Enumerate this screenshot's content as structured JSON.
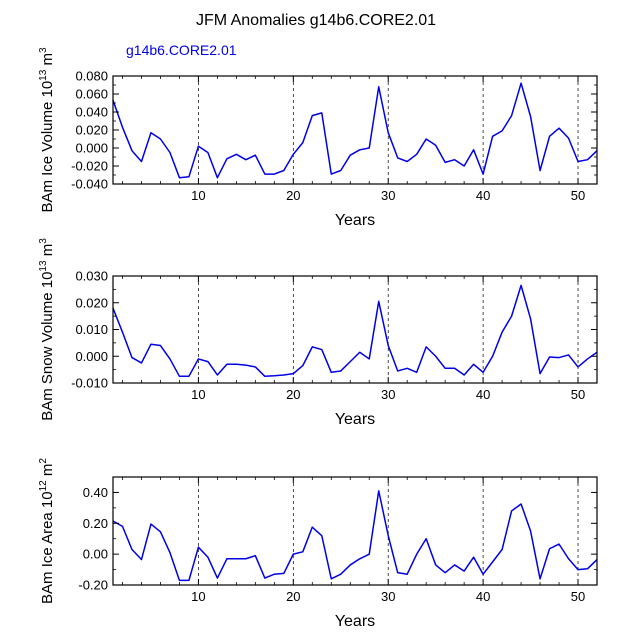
{
  "title": "JFM Anomalies g14b6.CORE2.01",
  "colors": {
    "line": "#0000e6",
    "axis": "#000000",
    "background": "#ffffff"
  },
  "chart_data": [
    {
      "type": "line",
      "legend_label": "g14b6.CORE2.01",
      "ylabel_main": "BAm Ice Volume 10",
      "ylabel_exp": "13",
      "ylabel_unit": " m",
      "ylabel_unit_exp": "3",
      "xlabel": "Years",
      "xlim": [
        1,
        52
      ],
      "ylim": [
        -0.04,
        0.08
      ],
      "xticks": [
        10,
        20,
        30,
        40,
        50
      ],
      "xtick_labels": [
        "10",
        "20",
        "30",
        "40",
        "50"
      ],
      "yticks": [
        -0.04,
        -0.02,
        0.0,
        0.02,
        0.04,
        0.06,
        0.08
      ],
      "ytick_labels": [
        "-0.040",
        "-0.020",
        "0.000",
        "0.020",
        "0.040",
        "0.060",
        "0.080"
      ],
      "x": [
        1,
        2,
        3,
        4,
        5,
        6,
        7,
        8,
        9,
        10,
        11,
        12,
        13,
        14,
        15,
        16,
        17,
        18,
        19,
        20,
        21,
        22,
        23,
        24,
        25,
        26,
        27,
        28,
        29,
        30,
        31,
        32,
        33,
        34,
        35,
        36,
        37,
        38,
        39,
        40,
        41,
        42,
        43,
        44,
        45,
        46,
        47,
        48,
        49,
        50,
        51,
        52
      ],
      "values": [
        0.053,
        0.023,
        -0.003,
        -0.015,
        0.017,
        0.01,
        -0.005,
        -0.033,
        -0.032,
        0.002,
        -0.005,
        -0.033,
        -0.012,
        -0.007,
        -0.013,
        -0.008,
        -0.029,
        -0.029,
        -0.025,
        -0.007,
        0.006,
        0.036,
        0.039,
        -0.029,
        -0.025,
        -0.008,
        -0.002,
        0.0,
        0.068,
        0.017,
        -0.011,
        -0.015,
        -0.007,
        0.01,
        0.003,
        -0.016,
        -0.013,
        -0.02,
        -0.002,
        -0.029,
        0.013,
        0.019,
        0.036,
        0.072,
        0.035,
        -0.025,
        0.013,
        0.022,
        0.011,
        -0.015,
        -0.013,
        -0.003
      ]
    },
    {
      "type": "line",
      "ylabel_main": "BAm Snow Volume 10",
      "ylabel_exp": "13",
      "ylabel_unit": " m",
      "ylabel_unit_exp": "3",
      "xlabel": "Years",
      "xlim": [
        1,
        52
      ],
      "ylim": [
        -0.01,
        0.03
      ],
      "xticks": [
        10,
        20,
        30,
        40,
        50
      ],
      "xtick_labels": [
        "10",
        "20",
        "30",
        "40",
        "50"
      ],
      "yticks": [
        -0.01,
        0.0,
        0.01,
        0.02,
        0.03
      ],
      "ytick_labels": [
        "-0.010",
        "0.000",
        "0.010",
        "0.020",
        "0.030"
      ],
      "x": [
        1,
        2,
        3,
        4,
        5,
        6,
        7,
        8,
        9,
        10,
        11,
        12,
        13,
        14,
        15,
        16,
        17,
        18,
        19,
        20,
        21,
        22,
        23,
        24,
        25,
        26,
        27,
        28,
        29,
        30,
        31,
        32,
        33,
        34,
        35,
        36,
        37,
        38,
        39,
        40,
        41,
        42,
        43,
        44,
        45,
        46,
        47,
        48,
        49,
        50,
        51,
        52
      ],
      "values": [
        0.018,
        0.009,
        -0.0005,
        -0.0025,
        0.0045,
        0.004,
        -0.001,
        -0.0075,
        -0.0075,
        -0.001,
        -0.002,
        -0.007,
        -0.003,
        -0.003,
        -0.0033,
        -0.004,
        -0.0075,
        -0.0073,
        -0.007,
        -0.0065,
        -0.0035,
        0.0035,
        0.0025,
        -0.006,
        -0.0055,
        -0.002,
        0.0015,
        -0.001,
        0.0205,
        0.004,
        -0.0055,
        -0.0045,
        -0.006,
        0.0035,
        0.0,
        -0.0045,
        -0.0045,
        -0.007,
        -0.003,
        -0.006,
        0.0,
        0.009,
        0.015,
        0.0265,
        0.014,
        -0.0065,
        -0.0003,
        -0.0005,
        0.0005,
        -0.004,
        -0.001,
        0.0015
      ]
    },
    {
      "type": "line",
      "ylabel_main": "BAm Ice Area 10",
      "ylabel_exp": "12",
      "ylabel_unit": " m",
      "ylabel_unit_exp": "2",
      "xlabel": "Years",
      "xlim": [
        1,
        52
      ],
      "ylim": [
        -0.2,
        0.5
      ],
      "xticks": [
        10,
        20,
        30,
        40,
        50
      ],
      "xtick_labels": [
        "10",
        "20",
        "30",
        "40",
        "50"
      ],
      "yticks": [
        -0.2,
        0.0,
        0.2,
        0.4
      ],
      "ytick_labels": [
        "-0.20",
        "0.00",
        "0.20",
        "0.40"
      ],
      "x": [
        1,
        2,
        3,
        4,
        5,
        6,
        7,
        8,
        9,
        10,
        11,
        12,
        13,
        14,
        15,
        16,
        17,
        18,
        19,
        20,
        21,
        22,
        23,
        24,
        25,
        26,
        27,
        28,
        29,
        30,
        31,
        32,
        33,
        34,
        35,
        36,
        37,
        38,
        39,
        40,
        41,
        42,
        43,
        44,
        45,
        46,
        47,
        48,
        49,
        50,
        51,
        52
      ],
      "values": [
        0.215,
        0.18,
        0.03,
        -0.035,
        0.195,
        0.145,
        0.01,
        -0.17,
        -0.17,
        0.045,
        -0.02,
        -0.155,
        -0.03,
        -0.03,
        -0.03,
        -0.01,
        -0.155,
        -0.13,
        -0.125,
        0.0,
        0.015,
        0.175,
        0.12,
        -0.16,
        -0.13,
        -0.07,
        -0.03,
        0.0,
        0.41,
        0.12,
        -0.12,
        -0.13,
        0.0,
        0.1,
        -0.07,
        -0.12,
        -0.07,
        -0.11,
        -0.02,
        -0.13,
        -0.05,
        0.03,
        0.28,
        0.325,
        0.15,
        -0.16,
        0.035,
        0.065,
        -0.03,
        -0.1,
        -0.095,
        -0.035
      ]
    }
  ]
}
